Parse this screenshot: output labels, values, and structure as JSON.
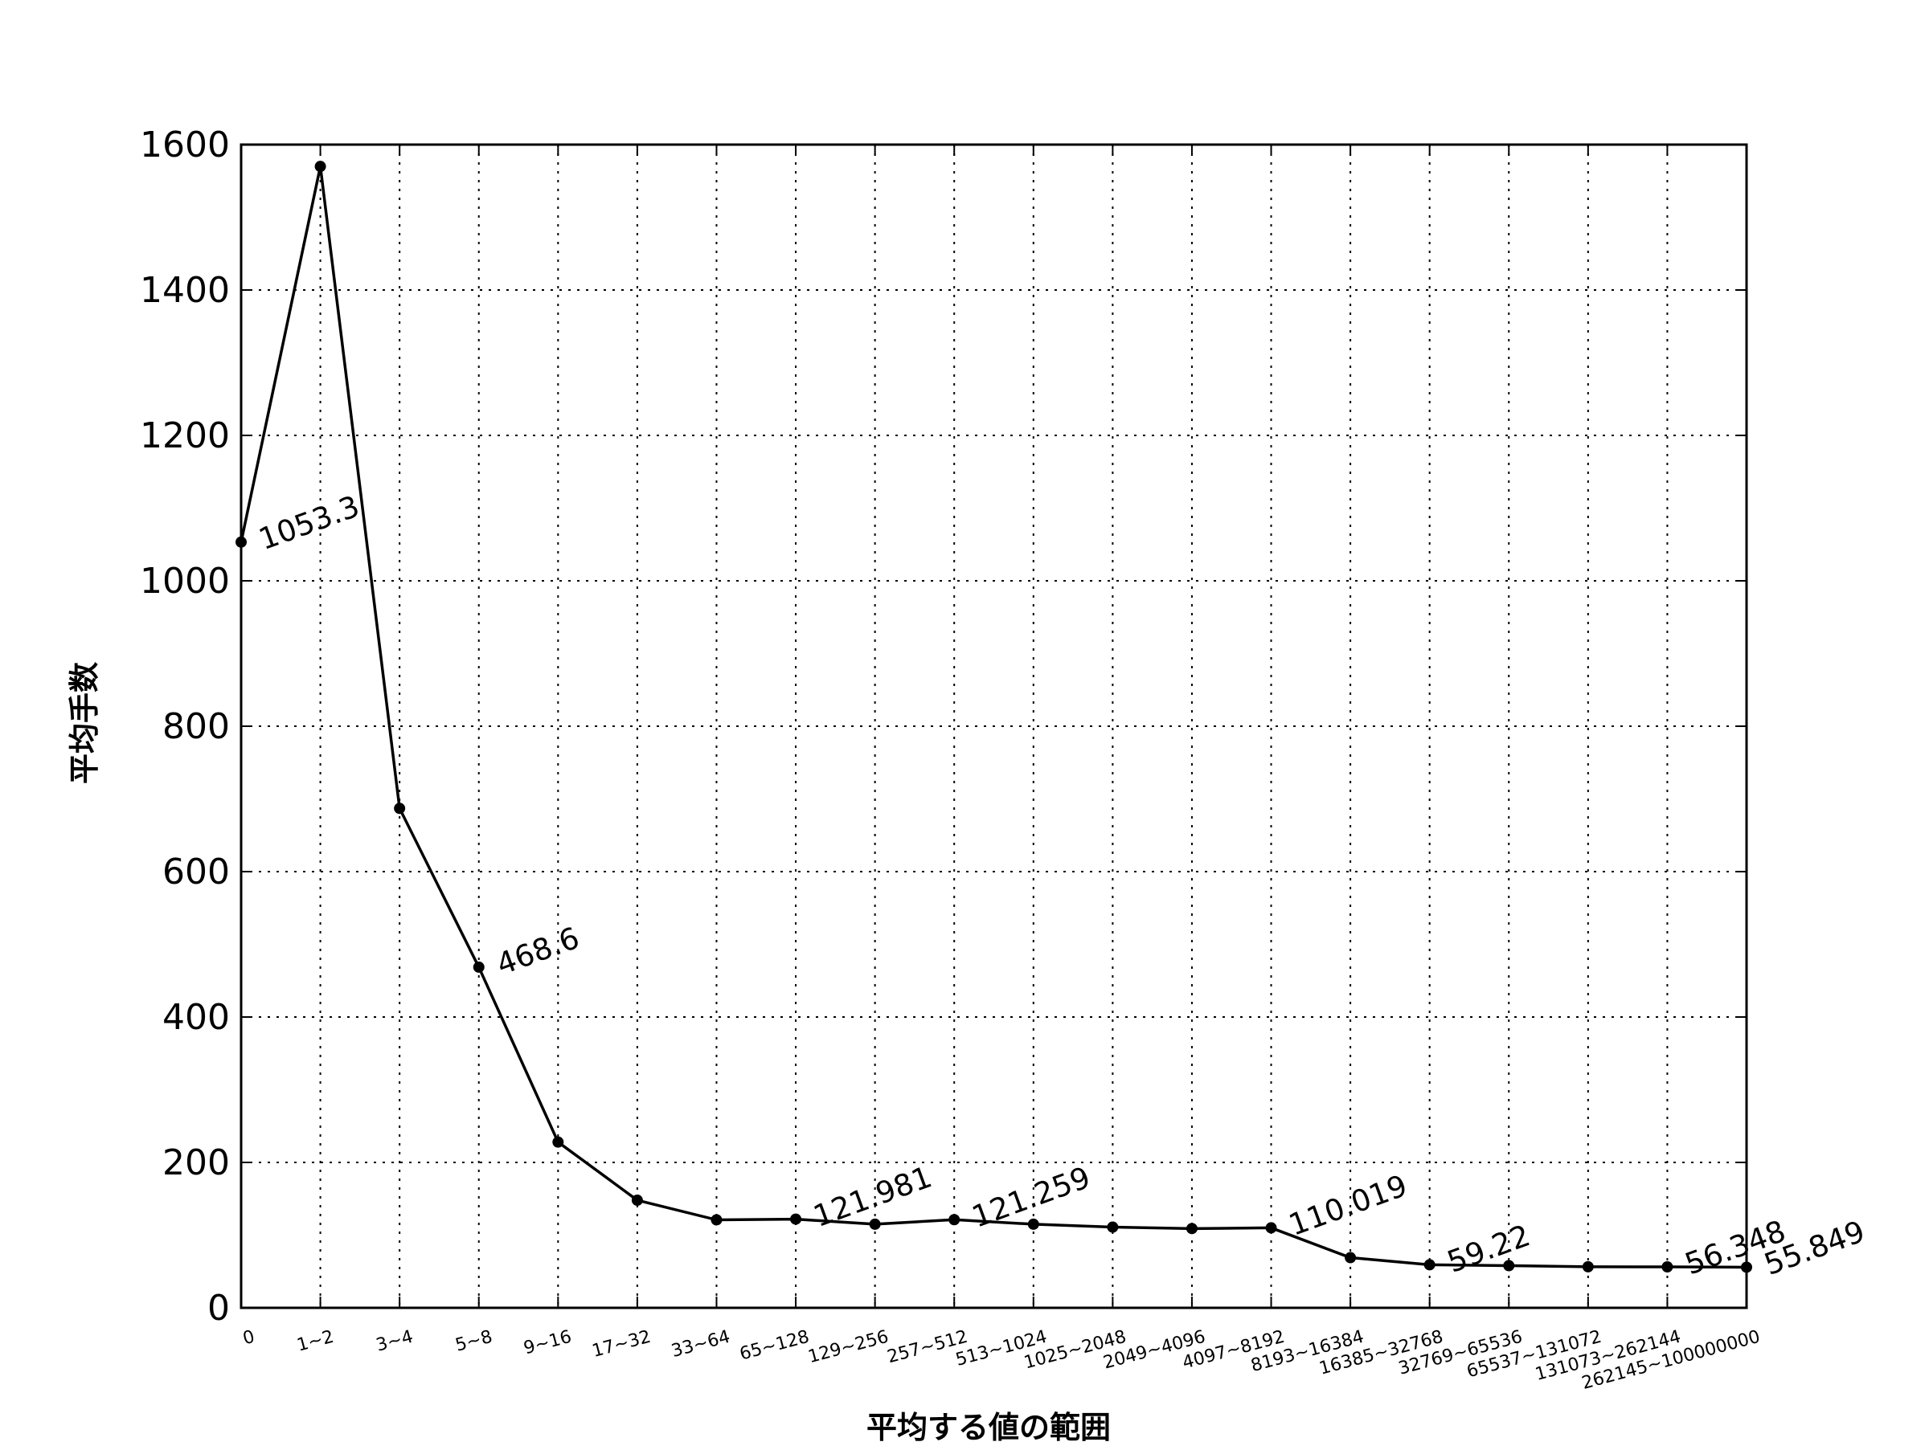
{
  "chart_data": {
    "type": "line",
    "title": "",
    "xlabel": "平均する値の範囲",
    "ylabel": "平均手数",
    "categories": [
      "0",
      "1~2",
      "3~4",
      "5~8",
      "9~16",
      "17~32",
      "33~64",
      "65~128",
      "129~256",
      "257~512",
      "513~1024",
      "1025~2048",
      "2049~4096",
      "4097~8192",
      "8193~16384",
      "16385~32768",
      "32769~65536",
      "65537~131072",
      "131073~262144",
      "262145~100000000"
    ],
    "values": [
      1053.3,
      1570,
      687,
      468.6,
      228,
      148,
      121,
      121.981,
      115,
      121.259,
      115,
      111,
      109,
      110.019,
      69,
      59.22,
      58,
      56.5,
      56.348,
      55.849
    ],
    "ylim": [
      0,
      1600
    ],
    "yticks": [
      0,
      200,
      400,
      600,
      800,
      1000,
      1200,
      1400,
      1600
    ],
    "grid": true,
    "annotations": [
      {
        "index": 0,
        "text": "1053.3"
      },
      {
        "index": 3,
        "text": "468.6"
      },
      {
        "index": 7,
        "text": "121.981"
      },
      {
        "index": 9,
        "text": "121.259"
      },
      {
        "index": 13,
        "text": "110.019"
      },
      {
        "index": 15,
        "text": "59.22"
      },
      {
        "index": 18,
        "text": "56.348"
      },
      {
        "index": 19,
        "text": "55.849"
      }
    ],
    "line_color": "#000000"
  }
}
